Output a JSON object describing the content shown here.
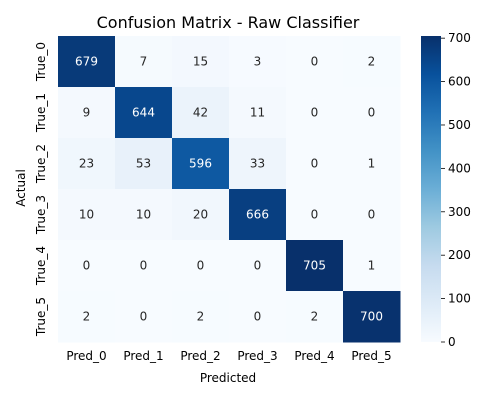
{
  "chart_data": {
    "type": "heatmap",
    "title": "Confusion Matrix - Raw Classifier",
    "xlabel": "Predicted",
    "ylabel": "Actual",
    "x_categories": [
      "Pred_0",
      "Pred_1",
      "Pred_2",
      "Pred_3",
      "Pred_4",
      "Pred_5"
    ],
    "y_categories": [
      "True_0",
      "True_1",
      "True_2",
      "True_3",
      "True_4",
      "True_5"
    ],
    "values": [
      [
        679,
        7,
        15,
        3,
        0,
        2
      ],
      [
        9,
        644,
        42,
        11,
        0,
        0
      ],
      [
        23,
        53,
        596,
        33,
        0,
        1
      ],
      [
        10,
        10,
        20,
        666,
        0,
        0
      ],
      [
        0,
        0,
        0,
        0,
        705,
        1
      ],
      [
        2,
        0,
        2,
        0,
        2,
        700
      ]
    ],
    "value_range": [
      0,
      705
    ],
    "colormap": "Blues",
    "colormap_low": "#f7fbff",
    "colormap_high": "#08306b",
    "colorbar_ticks": [
      0,
      100,
      200,
      300,
      400,
      500,
      600,
      700
    ],
    "grid": false
  }
}
